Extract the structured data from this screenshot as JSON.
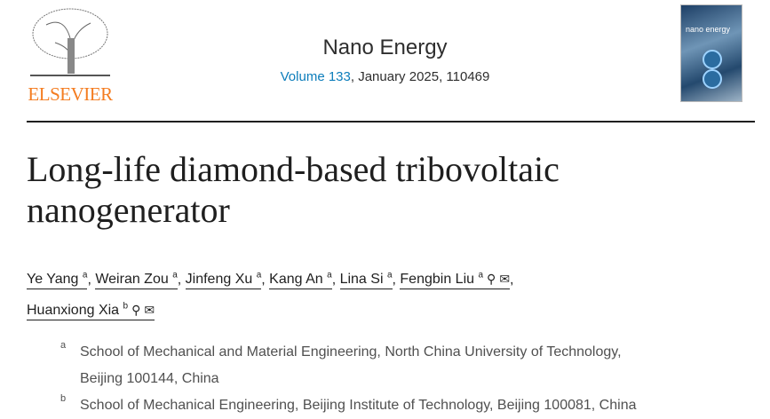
{
  "publisher": {
    "name": "ELSEVIER",
    "brand_color": "#f47c20"
  },
  "journal": {
    "title": "Nano Energy",
    "volume_link": "Volume 133",
    "rest": ", January 2025, 110469",
    "cover_text": "nano energy"
  },
  "article": {
    "title": "Long-life diamond-based tribovoltaic nanogenerator"
  },
  "authors": [
    {
      "name": "Ye Yang",
      "aff": "a"
    },
    {
      "name": "Weiran Zou",
      "aff": "a"
    },
    {
      "name": "Jinfeng Xu",
      "aff": "a"
    },
    {
      "name": "Kang An",
      "aff": "a"
    },
    {
      "name": "Lina Si",
      "aff": "a"
    },
    {
      "name": "Fengbin Liu",
      "aff": "a"
    },
    {
      "name": "Huanxiong Xia",
      "aff": "b"
    }
  ],
  "affiliations": [
    {
      "label": "a",
      "text": "School of Mechanical and Material Engineering, North China University of Technology, Beijing 100144, China"
    },
    {
      "label": "b",
      "text": "School of Mechanical Engineering, Beijing Institute of Technology, Beijing 100081, China"
    }
  ],
  "icons": {
    "person": "person-icon",
    "email": "email-icon"
  }
}
